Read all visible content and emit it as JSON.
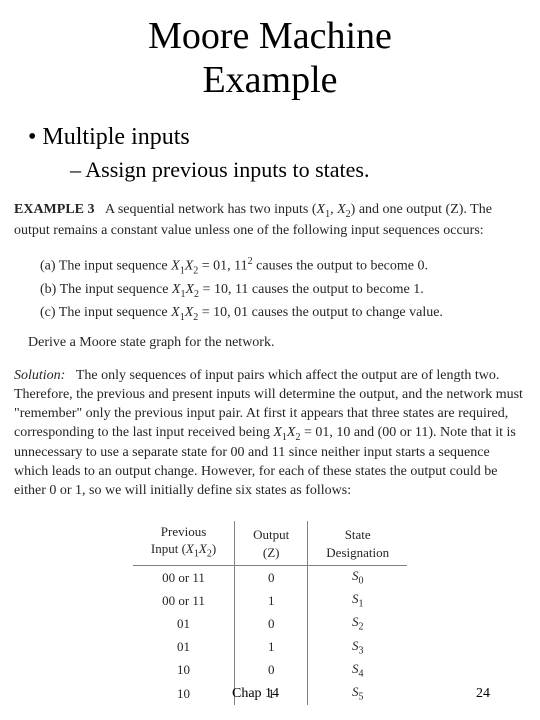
{
  "title_line1": "Moore Machine",
  "title_line2": "Example",
  "bullet_main": "Multiple inputs",
  "bullet_sub": "Assign previous inputs to states.",
  "example_label": "EXAMPLE 3",
  "example_intro": "A sequential network has two inputs (",
  "example_intro_tail": ") and one output (Z). The output remains a constant value unless one of the following input sequences occurs:",
  "rule_a_pre": "(a)  The input sequence ",
  "rule_a_seq": " = 01, 11",
  "rule_a_tail": " causes the output to become 0.",
  "rule_b_pre": "(b)  The input sequence ",
  "rule_b_seq": " = 10, 11 causes the output to become 1.",
  "rule_c_pre": "(c)  The input sequence ",
  "rule_c_seq": " = 10, 01 causes the output to change value.",
  "derive": "Derive a Moore state graph for the network.",
  "solution_label": "Solution:",
  "solution_body_1": "The only sequences of input pairs which affect the output are of length two. Therefore, the previous and present inputs will determine the output, and the network must \"remember\" only the previous input pair. At first it appears that three states are required, corresponding to the last input received being ",
  "solution_body_mid": " = 01, 10 and (00 or 11). Note that it is unnecessary to use a separate state for 00 and 11 since neither input starts a sequence which leads to an output change. However, for each of these states the output could be either 0 or 1, so we will initially define six states as follows:",
  "table": {
    "headers": {
      "input_l1": "Previous",
      "input_l2": "Input (",
      "input_l2_tail": ")",
      "output_l1": "Output",
      "output_l2": "(Z)",
      "state_l1": "State",
      "state_l2": "Designation"
    },
    "rows": [
      {
        "input": "00 or 11",
        "z": "0",
        "state": "S",
        "sub": "0"
      },
      {
        "input": "00 or 11",
        "z": "1",
        "state": "S",
        "sub": "1"
      },
      {
        "input": "01",
        "z": "0",
        "state": "S",
        "sub": "2"
      },
      {
        "input": "01",
        "z": "1",
        "state": "S",
        "sub": "3"
      },
      {
        "input": "10",
        "z": "0",
        "state": "S",
        "sub": "4"
      },
      {
        "input": "10",
        "z": "1",
        "state": "S",
        "sub": "5"
      }
    ]
  },
  "footer_chap": "Chap 14",
  "footer_page": "24",
  "colors": {
    "text": "#000000",
    "scan_text": "#252525",
    "rule": "#808080",
    "bg": "#ffffff"
  }
}
